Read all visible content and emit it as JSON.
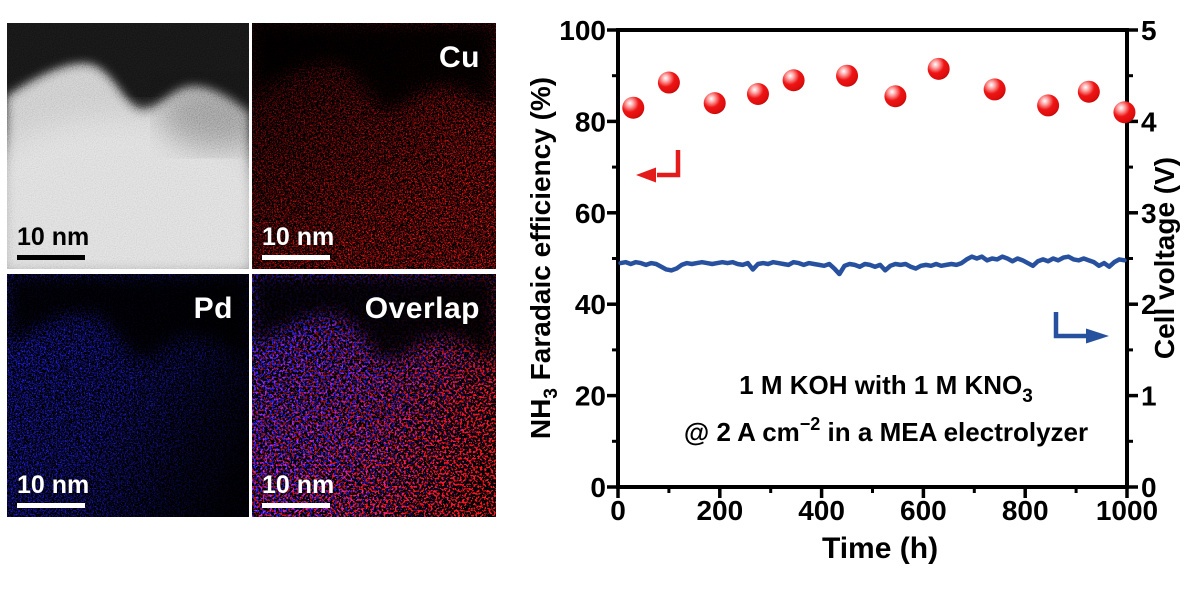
{
  "panels": [
    {
      "name": "haadf",
      "label": "",
      "scale_bar": "10 nm"
    },
    {
      "name": "cu-map",
      "label": "Cu",
      "scale_bar": "10 nm"
    },
    {
      "name": "pd-map",
      "label": "Pd",
      "scale_bar": "10 nm"
    },
    {
      "name": "overlap-map",
      "label": "Overlap",
      "scale_bar": "10 nm"
    }
  ],
  "colors": {
    "cu_dots": "#ff1414",
    "pd_dots": "#2222ff",
    "sphere_red": "#e81818",
    "voltage_blue": "#27519f",
    "axis_black": "#000000"
  },
  "chart_data": {
    "type": "scatter+line (dual y-axis)",
    "xlabel": "Time (h)",
    "ylabel_left_parts": {
      "pre": "NH",
      "sub": "3",
      "post": " Faradaic efficiency (%)"
    },
    "ylabel_right": "Cell voltage (V)",
    "xlim": [
      0,
      1000
    ],
    "xticks": [
      0,
      200,
      400,
      600,
      800,
      1000
    ],
    "ylim_left": [
      0,
      100
    ],
    "yticks_left": [
      0,
      20,
      40,
      60,
      80,
      100
    ],
    "ylim_right": [
      0,
      5
    ],
    "yticks_right": [
      0,
      1,
      2,
      3,
      4,
      5
    ],
    "grid": false,
    "legend": "none",
    "annotation": {
      "line1_pre": "1 M KOH with 1 M KNO",
      "line1_sub": "3",
      "line2_pre": "@ 2 A cm",
      "line2_sup": "−2",
      "line2_post": "  in a MEA electrolyzer"
    },
    "series": [
      {
        "name": "NH3 Faradaic efficiency",
        "type": "scatter",
        "axis": "left",
        "color": "#e81818",
        "x": [
          30,
          100,
          190,
          275,
          345,
          450,
          545,
          630,
          740,
          845,
          925,
          995
        ],
        "y": [
          83,
          88.5,
          84,
          86,
          89,
          90,
          85.5,
          91.5,
          87,
          83.5,
          86.5,
          82
        ]
      },
      {
        "name": "Cell voltage",
        "type": "line",
        "axis": "right",
        "color": "#27519f",
        "x": [
          5,
          15,
          25,
          35,
          45,
          55,
          65,
          75,
          85,
          95,
          105,
          115,
          125,
          135,
          145,
          155,
          165,
          175,
          185,
          195,
          205,
          215,
          225,
          235,
          245,
          255,
          265,
          275,
          285,
          295,
          305,
          315,
          325,
          335,
          345,
          355,
          365,
          375,
          385,
          395,
          405,
          415,
          425,
          435,
          445,
          455,
          465,
          475,
          485,
          495,
          505,
          515,
          525,
          535,
          545,
          555,
          565,
          575,
          585,
          595,
          605,
          615,
          625,
          635,
          645,
          655,
          665,
          675,
          685,
          695,
          705,
          715,
          725,
          735,
          745,
          755,
          765,
          775,
          785,
          795,
          805,
          815,
          825,
          835,
          845,
          855,
          865,
          875,
          885,
          895,
          905,
          915,
          925,
          935,
          945,
          955,
          965,
          975,
          985,
          995
        ],
        "y": [
          2.45,
          2.46,
          2.44,
          2.46,
          2.45,
          2.43,
          2.45,
          2.44,
          2.41,
          2.38,
          2.37,
          2.39,
          2.43,
          2.45,
          2.44,
          2.45,
          2.46,
          2.45,
          2.44,
          2.45,
          2.46,
          2.45,
          2.46,
          2.44,
          2.43,
          2.45,
          2.38,
          2.44,
          2.45,
          2.44,
          2.46,
          2.45,
          2.44,
          2.43,
          2.46,
          2.45,
          2.43,
          2.45,
          2.44,
          2.43,
          2.42,
          2.44,
          2.39,
          2.33,
          2.42,
          2.44,
          2.43,
          2.41,
          2.44,
          2.43,
          2.41,
          2.43,
          2.37,
          2.42,
          2.44,
          2.43,
          2.44,
          2.41,
          2.39,
          2.42,
          2.43,
          2.42,
          2.44,
          2.42,
          2.43,
          2.44,
          2.43,
          2.45,
          2.49,
          2.52,
          2.5,
          2.52,
          2.48,
          2.5,
          2.49,
          2.52,
          2.5,
          2.47,
          2.5,
          2.48,
          2.45,
          2.42,
          2.47,
          2.49,
          2.47,
          2.5,
          2.48,
          2.51,
          2.52,
          2.49,
          2.48,
          2.5,
          2.48,
          2.46,
          2.42,
          2.45,
          2.41,
          2.46,
          2.49,
          2.48
        ]
      }
    ],
    "arrows": [
      {
        "name": "left-axis-arrow",
        "color": "#e31b1b",
        "shaft": [
          [
            158,
            150
          ],
          [
            158,
            175
          ],
          [
            137,
            175
          ]
        ],
        "tip": [
          116,
          175
        ],
        "back_x": 136,
        "half": 7.5
      },
      {
        "name": "right-axis-arrow",
        "color": "#27519f",
        "shaft": [
          [
            536,
            312
          ],
          [
            536,
            336
          ],
          [
            567,
            336
          ]
        ],
        "tip": [
          589,
          336
        ],
        "back_x": 566,
        "half": 7.5
      }
    ]
  }
}
